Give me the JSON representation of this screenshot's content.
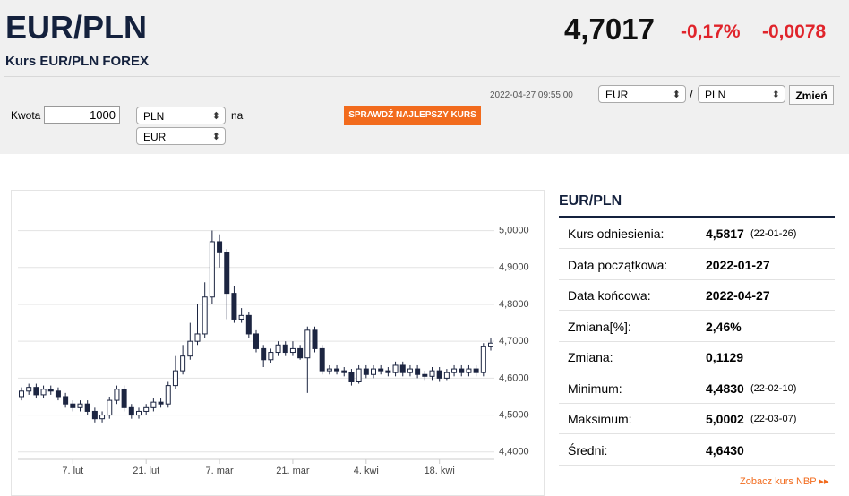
{
  "header": {
    "title": "EUR/PLN",
    "subtitle": "Kurs EUR/PLN FOREX",
    "price": "4,7017",
    "change_pct": "-0,17%",
    "change": "-0,0078"
  },
  "converter": {
    "amount_label": "Kwota",
    "amount": "1000",
    "from": "PLN",
    "na": "na",
    "to": "EUR",
    "timestamp": "2022-04-27 09:55:00",
    "button": "SPRAWDŹ NAJLEPSZY KURS",
    "pair_from": "EUR",
    "separator": "/",
    "pair_to": "PLN",
    "swap": "Zmień"
  },
  "chart_data": {
    "type": "candlestick",
    "categories": [
      null,
      null,
      null,
      null,
      null,
      null,
      null,
      "7. lut",
      null,
      null,
      null,
      null,
      null,
      null,
      null,
      null,
      null,
      "21. lut",
      null,
      null,
      null,
      null,
      null,
      null,
      null,
      null,
      null,
      "7. mar",
      null,
      null,
      null,
      null,
      null,
      null,
      null,
      null,
      null,
      "21. mar",
      null,
      null,
      null,
      null,
      null,
      null,
      null,
      null,
      null,
      "4. kwi",
      null,
      null,
      null,
      null,
      null,
      null,
      null,
      null,
      null,
      "18. kwi",
      null,
      null,
      null,
      null,
      null,
      null,
      null
    ],
    "open": [
      4.55,
      4.565,
      4.575,
      4.555,
      4.57,
      4.565,
      4.55,
      4.53,
      4.52,
      4.53,
      4.51,
      4.49,
      4.5,
      4.54,
      4.57,
      4.52,
      4.5,
      4.51,
      4.52,
      4.535,
      4.53,
      4.58,
      4.62,
      4.66,
      4.7,
      4.72,
      4.82,
      4.97,
      4.94,
      4.83,
      4.76,
      4.77,
      4.72,
      4.68,
      4.65,
      4.67,
      4.69,
      4.67,
      4.68,
      4.655,
      4.73,
      4.68,
      4.62,
      4.625,
      4.62,
      4.615,
      4.59,
      4.625,
      4.61,
      4.625,
      4.62,
      4.615,
      4.635,
      4.615,
      4.625,
      4.61,
      4.605,
      4.62,
      4.6,
      4.615,
      4.625,
      4.615,
      4.625,
      4.615,
      4.685
    ],
    "high": [
      4.575,
      4.585,
      4.585,
      4.58,
      4.58,
      4.575,
      4.56,
      4.54,
      4.54,
      4.54,
      4.52,
      4.51,
      4.55,
      4.58,
      4.58,
      4.53,
      4.52,
      4.53,
      4.545,
      4.545,
      4.59,
      4.66,
      4.69,
      4.75,
      4.8,
      4.86,
      5.0002,
      4.99,
      4.95,
      4.85,
      4.79,
      4.78,
      4.73,
      4.69,
      4.68,
      4.7,
      4.7,
      4.7,
      4.69,
      4.74,
      4.74,
      4.69,
      4.635,
      4.635,
      4.63,
      4.625,
      4.635,
      4.635,
      4.635,
      4.635,
      4.63,
      4.645,
      4.645,
      4.635,
      4.635,
      4.62,
      4.63,
      4.63,
      4.625,
      4.635,
      4.635,
      4.635,
      4.635,
      4.695,
      4.71
    ],
    "low": [
      4.54,
      4.555,
      4.545,
      4.545,
      4.555,
      4.54,
      4.52,
      4.51,
      4.51,
      4.5,
      4.48,
      4.48,
      4.49,
      4.53,
      4.51,
      4.49,
      4.49,
      4.5,
      4.51,
      4.52,
      4.52,
      4.57,
      4.61,
      4.65,
      4.69,
      4.71,
      4.8,
      4.9,
      4.76,
      4.75,
      4.75,
      4.71,
      4.67,
      4.63,
      4.64,
      4.66,
      4.66,
      4.66,
      4.65,
      4.56,
      4.67,
      4.61,
      4.61,
      4.61,
      4.605,
      4.58,
      4.585,
      4.6,
      4.6,
      4.61,
      4.605,
      4.605,
      4.605,
      4.605,
      4.6,
      4.595,
      4.595,
      4.59,
      4.595,
      4.605,
      4.605,
      4.605,
      4.605,
      4.605,
      4.675
    ],
    "close": [
      4.565,
      4.575,
      4.555,
      4.57,
      4.565,
      4.55,
      4.53,
      4.52,
      4.53,
      4.51,
      4.49,
      4.5,
      4.54,
      4.57,
      4.52,
      4.5,
      4.51,
      4.52,
      4.535,
      4.53,
      4.58,
      4.62,
      4.66,
      4.7,
      4.72,
      4.82,
      4.97,
      4.94,
      4.83,
      4.76,
      4.77,
      4.72,
      4.68,
      4.65,
      4.67,
      4.69,
      4.67,
      4.68,
      4.655,
      4.73,
      4.68,
      4.62,
      4.625,
      4.62,
      4.615,
      4.59,
      4.625,
      4.61,
      4.625,
      4.62,
      4.615,
      4.635,
      4.615,
      4.625,
      4.61,
      4.605,
      4.62,
      4.6,
      4.615,
      4.625,
      4.615,
      4.625,
      4.615,
      4.685,
      4.695
    ],
    "up_color": "#ffffff",
    "down_color": "#1c2541",
    "ylim": [
      4.38,
      5.05
    ],
    "yticks": [
      {
        "value": 4.4,
        "label": "4,4000"
      },
      {
        "value": 4.5,
        "label": "4,5000"
      },
      {
        "value": 4.6,
        "label": "4,6000"
      },
      {
        "value": 4.7,
        "label": "4,7000"
      },
      {
        "value": 4.8,
        "label": "4,8000"
      },
      {
        "value": 4.9,
        "label": "4,9000"
      },
      {
        "value": 5.0,
        "label": "5,0000"
      }
    ],
    "grid": true
  },
  "table": {
    "title": "EUR/PLN",
    "rows": [
      {
        "label": "Kurs odniesienia:",
        "value": "4,5817",
        "date": "(22-01-26)"
      },
      {
        "label": "Data początkowa:",
        "value": "2022-01-27"
      },
      {
        "label": "Data końcowa:",
        "value": "2022-04-27"
      },
      {
        "label": "Zmiana[%]:",
        "value": "2,46%"
      },
      {
        "label": "Zmiana:",
        "value": "0,1129"
      },
      {
        "label": "Minimum:",
        "value": "4,4830",
        "date": "(22-02-10)"
      },
      {
        "label": "Maksimum:",
        "value": "5,0002",
        "date": "(22-03-07)"
      },
      {
        "label": "Średni:",
        "value": "4,6430"
      }
    ],
    "link": "Zobacz kurs NBP"
  }
}
